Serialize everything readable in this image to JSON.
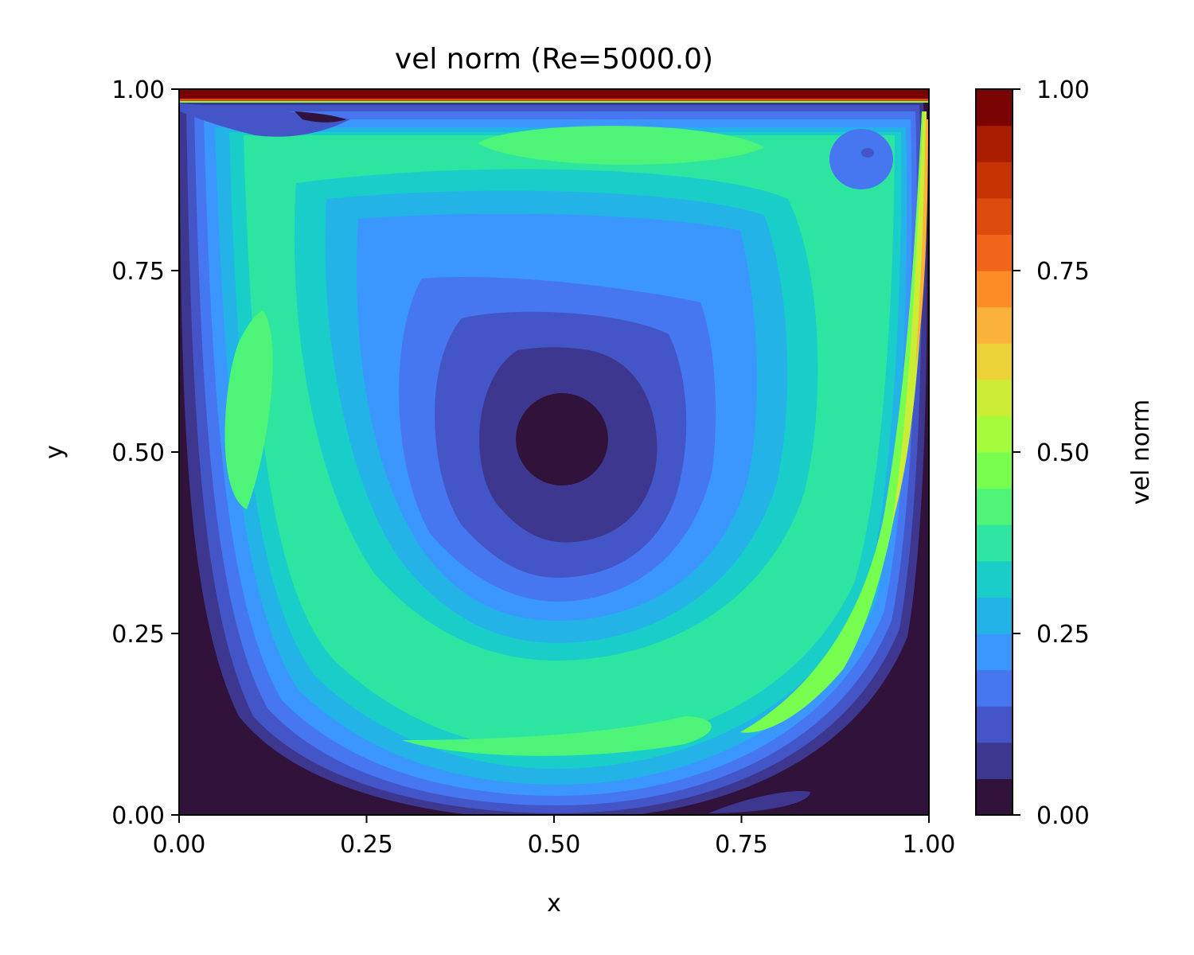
{
  "chart_data": {
    "type": "heatmap",
    "subtype": "filled-contour",
    "title": "vel norm (Re=5000.0)",
    "xlabel": "x",
    "ylabel": "y",
    "xlim": [
      0.0,
      1.0
    ],
    "ylim": [
      0.0,
      1.0
    ],
    "xticks": [
      "0.00",
      "0.25",
      "0.50",
      "0.75",
      "1.00"
    ],
    "yticks": [
      "0.00",
      "0.25",
      "0.50",
      "0.75",
      "1.00"
    ],
    "grid": false,
    "colormap": "turbo",
    "colorbar": {
      "label": "vel norm",
      "range": [
        0.0,
        1.0
      ],
      "ticks": [
        "0.00",
        "0.25",
        "0.50",
        "0.75",
        "1.00"
      ],
      "levels": 20,
      "band_colors": [
        "#30123b",
        "#3e378f",
        "#4456c7",
        "#4676f0",
        "#3b96fe",
        "#23b3e7",
        "#19cdc8",
        "#2ee4a1",
        "#4df478",
        "#77fe4f",
        "#a4fc3c",
        "#cced35",
        "#ebd239",
        "#fbb238",
        "#fd8c26",
        "#f1651a",
        "#de4b0e",
        "#c63303",
        "#a91d01",
        "#7a0403"
      ]
    },
    "annotations": {
      "lid": "y = 1.0, speed 1.0",
      "primary_vortex_center": [
        0.52,
        0.52
      ],
      "corner_eddies": [
        "top-left",
        "top-right",
        "bottom-left",
        "bottom-right"
      ]
    }
  }
}
